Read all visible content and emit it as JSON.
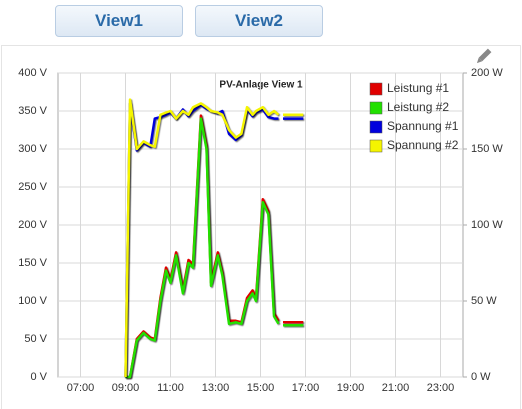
{
  "buttons": [
    "View1",
    "View2"
  ],
  "chart_data": {
    "type": "line",
    "title": "PV-Anlage View 1",
    "x": [
      9,
      9.2,
      9.5,
      9.8,
      10.1,
      10.3,
      10.55,
      10.8,
      11,
      11.25,
      11.55,
      11.8,
      12,
      12.35,
      12.6,
      12.8,
      13.1,
      13.3,
      13.6,
      13.9,
      14.15,
      14.4,
      14.65,
      14.8,
      15.1,
      15.35,
      15.6,
      15.8,
      15.95,
      16,
      16.9
    ],
    "xlim": [
      6,
      24
    ],
    "xticks": [
      {
        "value": 7,
        "label": "07:00"
      },
      {
        "value": 9,
        "label": "09:00"
      },
      {
        "value": 11,
        "label": "11:00"
      },
      {
        "value": 13,
        "label": "13:00"
      },
      {
        "value": 15,
        "label": "15:00"
      },
      {
        "value": 17,
        "label": "17:00"
      },
      {
        "value": 19,
        "label": "19:00"
      },
      {
        "value": 21,
        "label": "21:00"
      },
      {
        "value": 23,
        "label": "23:00"
      }
    ],
    "ylim": [
      0,
      400
    ],
    "yticks": [
      {
        "value": 0,
        "label": "0 V"
      },
      {
        "value": 50,
        "label": "50 V"
      },
      {
        "value": 100,
        "label": "100 V"
      },
      {
        "value": 150,
        "label": "150 V"
      },
      {
        "value": 200,
        "label": "200 V"
      },
      {
        "value": 250,
        "label": "250 V"
      },
      {
        "value": 300,
        "label": "300 V"
      },
      {
        "value": 350,
        "label": "350 V"
      },
      {
        "value": 400,
        "label": "400 V"
      }
    ],
    "y2lim": [
      0,
      200
    ],
    "y2ticks": [
      {
        "value": 0,
        "label": "0 W"
      },
      {
        "value": 50,
        "label": "50 W"
      },
      {
        "value": 100,
        "label": "100 W"
      },
      {
        "value": 150,
        "label": "150 W"
      },
      {
        "value": 200,
        "label": "200 W"
      }
    ],
    "grid": true,
    "legend": "top-right",
    "series": [
      {
        "name": "Leistung #1",
        "color": "#e00000",
        "axis": "y2",
        "values": [
          0,
          0,
          25,
          30,
          26,
          25,
          52,
          72,
          64,
          82,
          57,
          77,
          74,
          172,
          152,
          62,
          82,
          69,
          37,
          37,
          36,
          52,
          57,
          52,
          117,
          109,
          42,
          37,
          null,
          36,
          36
        ]
      },
      {
        "name": "Leistung #2",
        "color": "#22e000",
        "axis": "y2",
        "values": [
          0,
          0,
          24,
          29,
          25,
          24,
          50,
          70,
          62,
          80,
          55,
          75,
          72,
          170,
          150,
          60,
          80,
          67,
          35,
          36,
          35,
          50,
          55,
          50,
          115,
          107,
          40,
          35,
          null,
          34,
          34
        ]
      },
      {
        "name": "Spannung #1",
        "color": "#0000dd",
        "values": [
          0,
          360,
          298,
          308,
          303,
          340,
          342,
          345,
          348,
          340,
          352,
          343,
          350,
          358,
          353,
          350,
          347,
          350,
          320,
          312,
          318,
          352,
          343,
          348,
          352,
          342,
          340,
          340,
          null,
          340,
          340
        ]
      },
      {
        "name": "Spannung #2",
        "color": "#f5f500",
        "values": [
          0,
          365,
          300,
          310,
          305,
          303,
          345,
          348,
          350,
          340,
          350,
          345,
          355,
          360,
          355,
          350,
          348,
          345,
          325,
          315,
          320,
          355,
          345,
          350,
          355,
          345,
          350,
          345,
          null,
          345,
          345
        ]
      }
    ]
  }
}
